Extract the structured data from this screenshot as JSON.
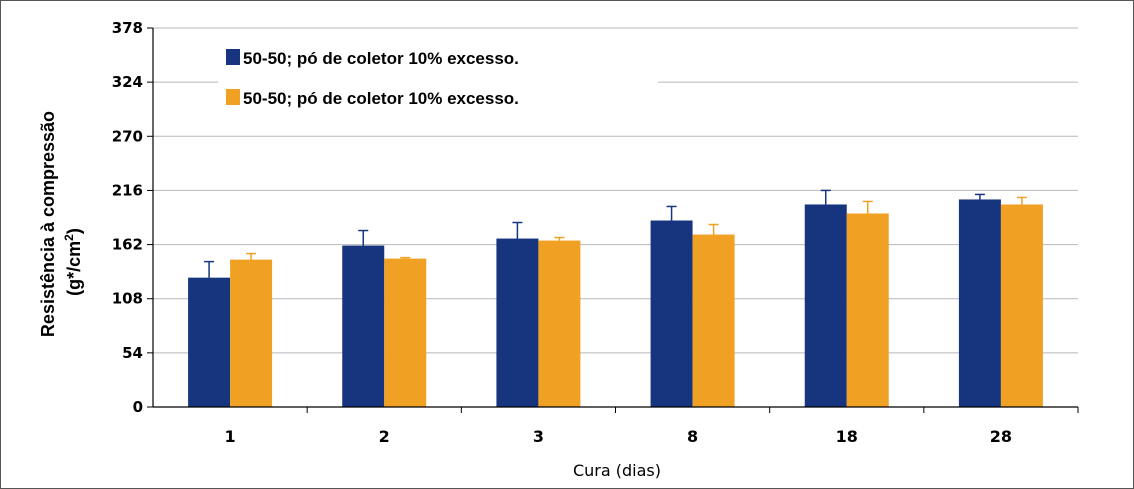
{
  "chart_data": {
    "type": "bar",
    "categories": [
      "1",
      "2",
      "3",
      "8",
      "18",
      "28"
    ],
    "series": [
      {
        "name": "50-50; pó de coletor 10% excesso.",
        "color": "#17357f",
        "values": [
          129,
          161,
          168,
          186,
          202,
          207
        ],
        "errors": [
          16,
          15,
          16,
          14,
          14,
          5
        ]
      },
      {
        "name": "50-50; pó de coletor 10% excesso.",
        "color": "#f0a124",
        "values": [
          147,
          148,
          166,
          172,
          193,
          202
        ],
        "errors": [
          6,
          1,
          3,
          10,
          12,
          7
        ]
      }
    ],
    "yticks": [
      0,
      54,
      108,
      162,
      216,
      270,
      324,
      378
    ],
    "ylim": [
      0,
      378
    ],
    "xlabel": "Cura (dias)",
    "ylabel_line1": "Resistência à compressão",
    "ylabel_line2_prefix": "(g*/cm",
    "ylabel_line2_sup": "2",
    "ylabel_line2_suffix": ")",
    "grid": true,
    "legend_position": "top-left"
  }
}
